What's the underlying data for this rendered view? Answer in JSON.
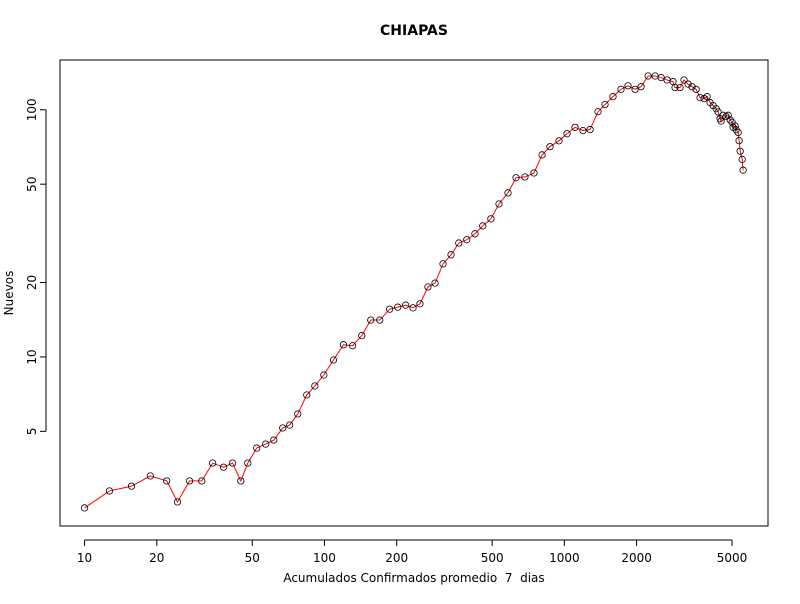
{
  "chart_data": {
    "type": "line",
    "title": "CHIAPAS",
    "x_label": "Acumulados Confirmados promedio  7  dias",
    "y_label": "Nuevos",
    "x": [
      10,
      12.7,
      15.7,
      18.8,
      22.0,
      24.4,
      27.4,
      30.8,
      34.2,
      38.0,
      41.4,
      44.8,
      47.9,
      52.2,
      56.9,
      61.5,
      67.0,
      71.6,
      77.4,
      84.4,
      91.2,
      99.4,
      109,
      120,
      131,
      143,
      156,
      170,
      187,
      202,
      218,
      234,
      250,
      270,
      289,
      312,
      337,
      363,
      392,
      424,
      457,
      494,
      534,
      582,
      629,
      685,
      747,
      807,
      871,
      950,
      1026,
      1108,
      1196,
      1280,
      1381,
      1477,
      1595,
      1722,
      1842,
      1971,
      2088,
      2235,
      2389,
      2531,
      2680,
      2838,
      2893,
      3034,
      3153,
      3279,
      3406,
      3541,
      3680,
      3822,
      3935,
      4049,
      4170,
      4290,
      4373,
      4458,
      4500,
      4590,
      4720,
      4817,
      4911,
      5002,
      5050,
      5150,
      5199,
      5300,
      5350,
      5405,
      5510,
      5560
    ],
    "values": [
      2.45,
      2.87,
      3.0,
      3.3,
      3.15,
      2.59,
      3.15,
      3.15,
      3.72,
      3.58,
      3.72,
      3.15,
      3.72,
      4.28,
      4.44,
      4.61,
      5.16,
      5.3,
      5.88,
      7.02,
      7.63,
      8.45,
      9.72,
      11.2,
      11.1,
      12.2,
      14.1,
      14.1,
      15.6,
      15.9,
      16.2,
      15.8,
      16.4,
      19.2,
      19.9,
      23.8,
      25.9,
      28.9,
      29.8,
      31.5,
      33.9,
      36.2,
      41.6,
      46.1,
      53.1,
      53.5,
      55.5,
      65.7,
      70.9,
      74.9,
      80.0,
      84.9,
      82.4,
      83.2,
      98.2,
      105,
      113,
      121,
      125,
      121,
      124,
      137,
      137,
      135,
      132,
      130,
      123,
      123,
      132,
      127,
      124,
      121,
      112,
      111,
      113,
      107,
      104,
      101,
      98,
      92,
      90,
      95,
      94,
      95,
      91,
      89,
      85,
      86,
      83,
      81,
      75,
      68,
      63,
      57
    ],
    "color": "#ff0000",
    "marker_color": "#000000",
    "xlog": true,
    "ylog": true,
    "xlim": [
      7.9,
      7060
    ],
    "ylim": [
      2.07,
      159
    ],
    "xticks": [
      10,
      20,
      50,
      100,
      200,
      500,
      1000,
      2000,
      5000
    ],
    "yticks": [
      5,
      10,
      20,
      50,
      100
    ]
  }
}
